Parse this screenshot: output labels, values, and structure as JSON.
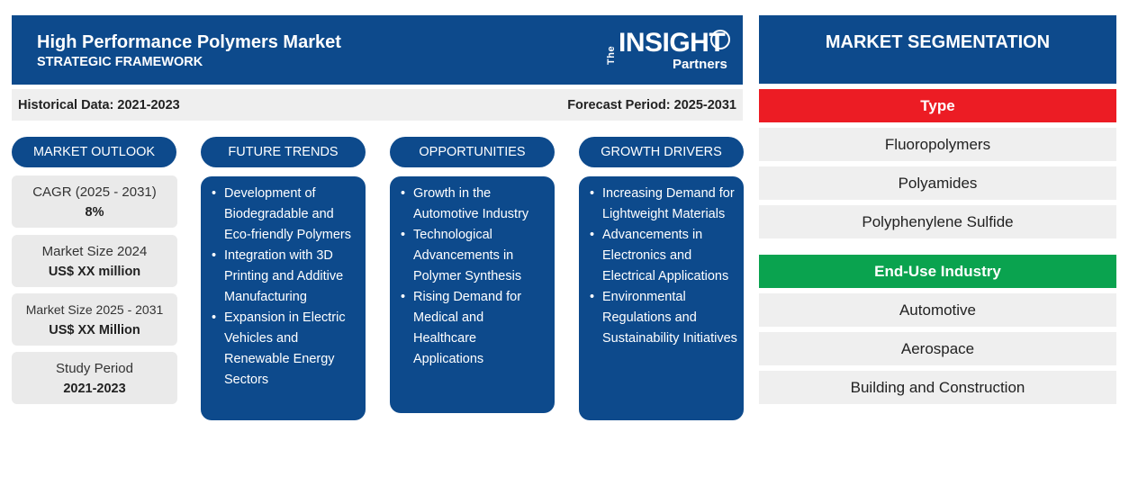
{
  "header": {
    "title": "High Performance Polymers Market",
    "subtitle": "STRATEGIC FRAMEWORK",
    "logo_the": "The",
    "logo_insight": "INSIGHT",
    "logo_partners": "Partners"
  },
  "infobar": {
    "historical": "Historical Data: 2021-2023",
    "forecast": "Forecast Period: 2025-2031"
  },
  "outlook": {
    "heading": "MARKET OUTLOOK",
    "cards": [
      {
        "label": "CAGR (2025 - 2031)",
        "value": "8%"
      },
      {
        "label": "Market Size 2024",
        "value": "US$ XX million"
      },
      {
        "label": "Market Size 2025 - 2031",
        "value": "US$ XX Million"
      },
      {
        "label": "Study Period",
        "value": "2021-2023"
      }
    ]
  },
  "trends": {
    "heading": "FUTURE TRENDS",
    "items": [
      "Development of Biodegradable and Eco-friendly Polymers",
      "Integration with 3D Printing and Additive Manufacturing",
      "Expansion in Electric Vehicles and Renewable Energy Sectors"
    ]
  },
  "opportunities": {
    "heading": "OPPORTUNITIES",
    "items": [
      "Growth in the Automotive Industry",
      "Technological Advancements in Polymer Synthesis",
      "Rising Demand for Medical and Healthcare Applications"
    ]
  },
  "drivers": {
    "heading": "GROWTH DRIVERS",
    "items": [
      "Increasing Demand for Lightweight Materials",
      "Advancements in Electronics and Electrical Applications",
      "Environmental Regulations and Sustainability Initiatives"
    ]
  },
  "segmentation": {
    "heading": "MARKET SEGMENTATION",
    "type": {
      "label": "Type",
      "color": "#ec1c24",
      "items": [
        "Fluoropolymers",
        "Polyamides",
        "Polyphenylene Sulfide"
      ]
    },
    "end_use": {
      "label": "End-Use Industry",
      "color": "#0aa34f",
      "items": [
        "Automotive",
        "Aerospace",
        "Building and Construction"
      ]
    }
  },
  "colors": {
    "primary": "#0d4a8c",
    "card_bg": "#eaeaea",
    "row_bg": "#efefef"
  }
}
